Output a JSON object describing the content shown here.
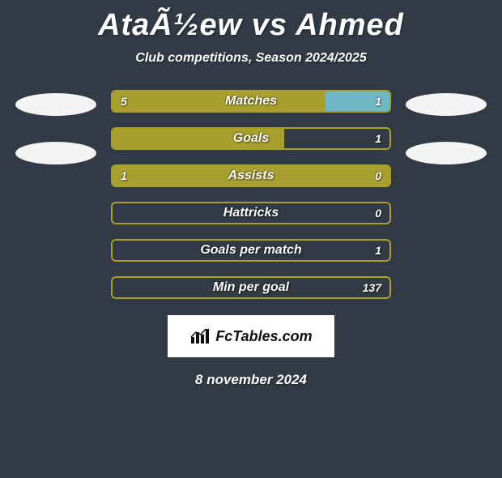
{
  "title": "AtaÃ½ew vs Ahmed",
  "subtitle": "Club competitions, Season 2024/2025",
  "date": "8 november 2024",
  "logo_text": "FcTables.com",
  "colors": {
    "p1": "#a8a02d",
    "p2": "#6fb8c6",
    "oval_fill": "#f4f4f4",
    "bg": "#323a45"
  },
  "side_ovals": {
    "left_count": 2,
    "right_count": 2
  },
  "bars": [
    {
      "label": "Matches",
      "left": "5",
      "right": "1",
      "left_fill_pct": 77,
      "right_fill_pct": 23,
      "show_left": true,
      "show_right": true
    },
    {
      "label": "Goals",
      "left": "",
      "right": "1",
      "left_fill_pct": 62,
      "right_fill_pct": 0,
      "show_left": false,
      "show_right": true
    },
    {
      "label": "Assists",
      "left": "1",
      "right": "0",
      "left_fill_pct": 100,
      "right_fill_pct": 0,
      "show_left": true,
      "show_right": true
    },
    {
      "label": "Hattricks",
      "left": "",
      "right": "0",
      "left_fill_pct": 0,
      "right_fill_pct": 0,
      "show_left": false,
      "show_right": true
    },
    {
      "label": "Goals per match",
      "left": "",
      "right": "1",
      "left_fill_pct": 0,
      "right_fill_pct": 0,
      "show_left": false,
      "show_right": true
    },
    {
      "label": "Min per goal",
      "left": "",
      "right": "137",
      "left_fill_pct": 0,
      "right_fill_pct": 0,
      "show_left": false,
      "show_right": true
    }
  ]
}
